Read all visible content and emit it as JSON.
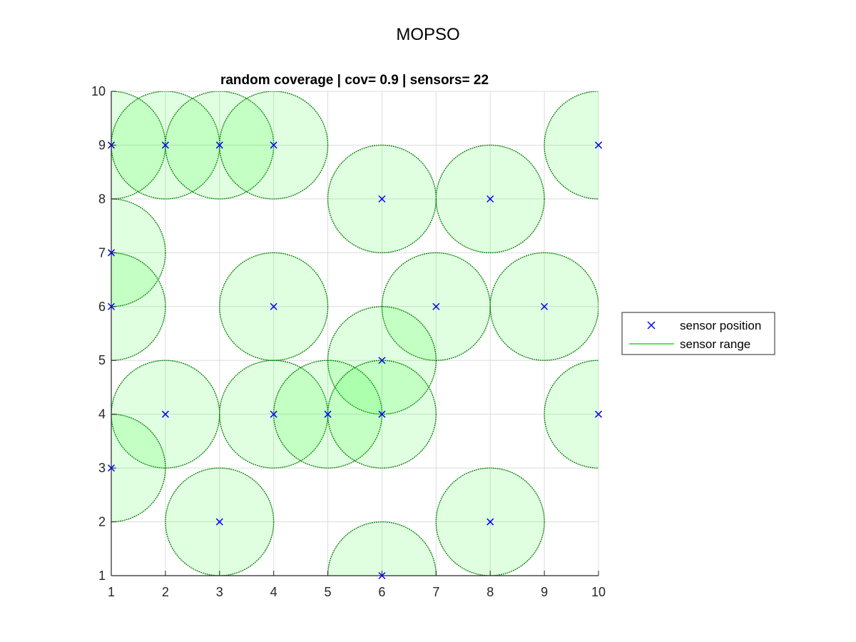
{
  "figure": {
    "title": "MOPSO"
  },
  "chart_data": {
    "type": "scatter",
    "title": "random coverage | cov= 0.9 | sensors= 22",
    "xlabel": "",
    "ylabel": "",
    "xlim": [
      1,
      10
    ],
    "ylim": [
      1,
      10
    ],
    "xticks": [
      1,
      2,
      3,
      4,
      5,
      6,
      7,
      8,
      9,
      10
    ],
    "yticks": [
      1,
      2,
      3,
      4,
      5,
      6,
      7,
      8,
      9,
      10
    ],
    "grid": true,
    "sensor_range": 1,
    "legend": {
      "location": "outside-right",
      "entries": [
        {
          "label": "sensor position",
          "marker": "x",
          "color": "#0000ff"
        },
        {
          "label": "sensor range",
          "marker": "line",
          "color": "#00cc00"
        }
      ]
    },
    "colors": {
      "marker": "#0000ff",
      "range_fill": "#00ff00",
      "range_edge": "#008000",
      "grid": "#dcdcdc",
      "axis": "#262626"
    },
    "series": [
      {
        "name": "sensor position",
        "points": [
          {
            "x": 1,
            "y": 9
          },
          {
            "x": 2,
            "y": 9
          },
          {
            "x": 3,
            "y": 9
          },
          {
            "x": 4,
            "y": 9
          },
          {
            "x": 6,
            "y": 8
          },
          {
            "x": 8,
            "y": 8
          },
          {
            "x": 10,
            "y": 9
          },
          {
            "x": 1,
            "y": 7
          },
          {
            "x": 1,
            "y": 6
          },
          {
            "x": 4,
            "y": 6
          },
          {
            "x": 7,
            "y": 6
          },
          {
            "x": 9,
            "y": 6
          },
          {
            "x": 6,
            "y": 5
          },
          {
            "x": 2,
            "y": 4
          },
          {
            "x": 4,
            "y": 4
          },
          {
            "x": 5,
            "y": 4
          },
          {
            "x": 6,
            "y": 4
          },
          {
            "x": 10,
            "y": 4
          },
          {
            "x": 1,
            "y": 3
          },
          {
            "x": 3,
            "y": 2
          },
          {
            "x": 8,
            "y": 2
          },
          {
            "x": 6,
            "y": 1
          }
        ]
      }
    ]
  }
}
